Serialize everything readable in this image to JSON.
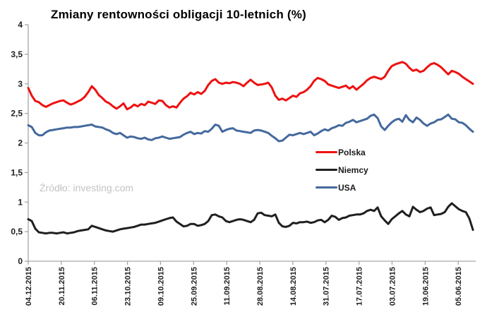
{
  "title": "Zmiany rentowności obligacji 10-letnich (%)",
  "source_note": "Źródło: investing.com",
  "legend": [
    {
      "label": "Polska",
      "color": "#ee1111"
    },
    {
      "label": "Niemcy",
      "color": "#1f1f1f"
    },
    {
      "label": "USA",
      "color": "#44699d"
    }
  ],
  "chart_data": {
    "type": "line",
    "title": "Zmiany rentowności obligacji 10-letnich (%)",
    "xlabel": "",
    "ylabel": "",
    "ylim": [
      0,
      4
    ],
    "grid": false,
    "legend_position": "center-right",
    "decimal_separator": ",",
    "y_ticks_top_to_bottom": [
      "4",
      "3,5",
      "3",
      "2,5",
      "2",
      "1,5",
      "1",
      "0,5",
      "0"
    ],
    "x_tick_labels_left_to_right": [
      "04.12.2015",
      "20.11.2015",
      "06.11.2015",
      "23.10.2015",
      "09.10.2015",
      "25.09.2015",
      "11.09.2015",
      "28.08.2015",
      "14.08.2015",
      "31.07.2015",
      "17.07.2015",
      "03.07.2015",
      "19.06.2015",
      "05.06.2015"
    ],
    "x_axis_direction": "newest date at left, oldest at right; daily points sampled evenly between ticks",
    "series": [
      {
        "name": "Polska",
        "color": "#ee1111",
        "values": [
          2.93,
          2.8,
          2.71,
          2.69,
          2.64,
          2.61,
          2.64,
          2.67,
          2.69,
          2.71,
          2.72,
          2.68,
          2.65,
          2.67,
          2.7,
          2.73,
          2.78,
          2.86,
          2.96,
          2.9,
          2.81,
          2.76,
          2.7,
          2.67,
          2.62,
          2.58,
          2.62,
          2.67,
          2.57,
          2.6,
          2.65,
          2.62,
          2.66,
          2.64,
          2.7,
          2.68,
          2.66,
          2.72,
          2.71,
          2.64,
          2.6,
          2.62,
          2.6,
          2.68,
          2.75,
          2.79,
          2.85,
          2.82,
          2.86,
          2.83,
          2.88,
          2.98,
          3.05,
          3.08,
          3.02,
          3.0,
          3.02,
          3.01,
          3.03,
          3.02,
          3.0,
          2.96,
          3.02,
          3.07,
          3.02,
          2.98,
          2.99,
          3.0,
          3.02,
          2.94,
          2.8,
          2.73,
          2.75,
          2.72,
          2.76,
          2.8,
          2.78,
          2.84,
          2.86,
          2.9,
          2.96,
          3.05,
          3.1,
          3.08,
          3.05,
          2.99,
          2.97,
          2.95,
          2.93,
          2.95,
          2.97,
          2.92,
          2.96,
          2.9,
          2.95,
          3.0,
          3.06,
          3.1,
          3.12,
          3.1,
          3.08,
          3.12,
          3.22,
          3.3,
          3.33,
          3.35,
          3.37,
          3.34,
          3.27,
          3.22,
          3.24,
          3.2,
          3.22,
          3.28,
          3.33,
          3.35,
          3.32,
          3.28,
          3.22,
          3.16,
          3.22,
          3.2,
          3.17,
          3.12,
          3.08,
          3.04,
          3.0
        ]
      },
      {
        "name": "Niemcy",
        "color": "#1f1f1f",
        "values": [
          0.71,
          0.68,
          0.55,
          0.49,
          0.48,
          0.47,
          0.48,
          0.48,
          0.47,
          0.48,
          0.49,
          0.47,
          0.48,
          0.49,
          0.51,
          0.52,
          0.53,
          0.54,
          0.6,
          0.58,
          0.56,
          0.54,
          0.52,
          0.51,
          0.5,
          0.52,
          0.54,
          0.55,
          0.56,
          0.57,
          0.58,
          0.6,
          0.62,
          0.62,
          0.63,
          0.64,
          0.65,
          0.67,
          0.69,
          0.71,
          0.73,
          0.74,
          0.67,
          0.63,
          0.59,
          0.6,
          0.63,
          0.63,
          0.6,
          0.61,
          0.63,
          0.68,
          0.78,
          0.79,
          0.76,
          0.74,
          0.68,
          0.66,
          0.68,
          0.7,
          0.71,
          0.7,
          0.68,
          0.66,
          0.7,
          0.81,
          0.82,
          0.78,
          0.77,
          0.76,
          0.79,
          0.65,
          0.59,
          0.58,
          0.6,
          0.65,
          0.64,
          0.66,
          0.66,
          0.67,
          0.65,
          0.66,
          0.69,
          0.7,
          0.66,
          0.7,
          0.77,
          0.75,
          0.7,
          0.73,
          0.74,
          0.77,
          0.78,
          0.79,
          0.79,
          0.81,
          0.85,
          0.87,
          0.85,
          0.91,
          0.76,
          0.69,
          0.63,
          0.71,
          0.76,
          0.81,
          0.85,
          0.79,
          0.76,
          0.92,
          0.87,
          0.83,
          0.85,
          0.89,
          0.91,
          0.78,
          0.79,
          0.8,
          0.83,
          0.92,
          0.98,
          0.93,
          0.88,
          0.85,
          0.83,
          0.72,
          0.53
        ]
      },
      {
        "name": "USA",
        "color": "#44699d",
        "values": [
          2.3,
          2.27,
          2.17,
          2.13,
          2.13,
          2.18,
          2.21,
          2.22,
          2.23,
          2.24,
          2.25,
          2.26,
          2.26,
          2.27,
          2.27,
          2.28,
          2.29,
          2.3,
          2.31,
          2.28,
          2.27,
          2.26,
          2.23,
          2.21,
          2.17,
          2.15,
          2.17,
          2.13,
          2.09,
          2.11,
          2.1,
          2.08,
          2.07,
          2.09,
          2.06,
          2.05,
          2.08,
          2.09,
          2.11,
          2.09,
          2.07,
          2.08,
          2.09,
          2.1,
          2.14,
          2.17,
          2.19,
          2.15,
          2.17,
          2.16,
          2.2,
          2.19,
          2.24,
          2.31,
          2.29,
          2.19,
          2.22,
          2.24,
          2.25,
          2.21,
          2.2,
          2.19,
          2.18,
          2.17,
          2.21,
          2.22,
          2.21,
          2.19,
          2.17,
          2.12,
          2.08,
          2.03,
          2.04,
          2.09,
          2.14,
          2.13,
          2.15,
          2.17,
          2.15,
          2.17,
          2.19,
          2.13,
          2.16,
          2.2,
          2.23,
          2.21,
          2.25,
          2.27,
          2.3,
          2.29,
          2.34,
          2.36,
          2.39,
          2.35,
          2.37,
          2.39,
          2.41,
          2.46,
          2.48,
          2.42,
          2.28,
          2.22,
          2.29,
          2.35,
          2.39,
          2.41,
          2.36,
          2.47,
          2.39,
          2.35,
          2.43,
          2.39,
          2.33,
          2.29,
          2.33,
          2.35,
          2.39,
          2.4,
          2.44,
          2.48,
          2.41,
          2.4,
          2.35,
          2.34,
          2.3,
          2.24,
          2.19
        ]
      }
    ]
  }
}
